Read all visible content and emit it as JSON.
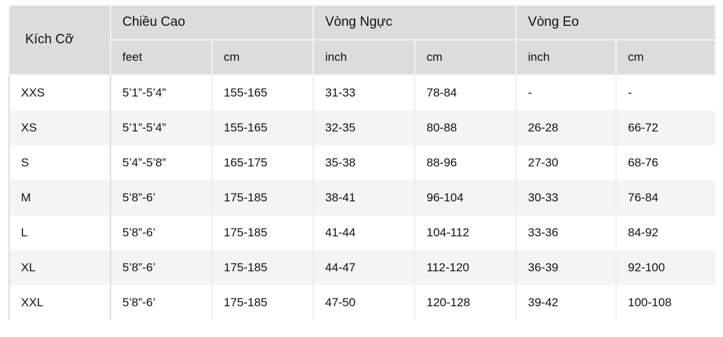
{
  "header": {
    "size": "Kích Cỡ",
    "groups": [
      "Chiều Cao",
      "Vòng Ngực",
      "Vòng Eo"
    ],
    "units": [
      "feet",
      "cm",
      "inch",
      "cm",
      "inch",
      "cm"
    ]
  },
  "rows": [
    [
      "XXS",
      "5’1”-5’4”",
      "155-165",
      "31-33",
      "78-84",
      "-",
      "-"
    ],
    [
      "XS",
      "5’1”-5’4”",
      "155-165",
      "32-35",
      "80-88",
      "26-28",
      "66-72"
    ],
    [
      "S",
      "5’4”-5’8”",
      "165-175",
      "35-38",
      "88-96",
      "27-30",
      "68-76"
    ],
    [
      "M",
      "5’8”-6’",
      "175-185",
      "38-41",
      "96-104",
      "30-33",
      "76-84"
    ],
    [
      "L",
      "5’8”-6’",
      "175-185",
      "41-44",
      "104-112",
      "33-36",
      "84-92"
    ],
    [
      "XL",
      "5’8”-6’",
      "175-185",
      "44-47",
      "112-120",
      "36-39",
      "92-100"
    ],
    [
      "XXL",
      "5’8”-6’",
      "175-185",
      "47-50",
      "120-128",
      "39-42",
      "100-108"
    ]
  ]
}
